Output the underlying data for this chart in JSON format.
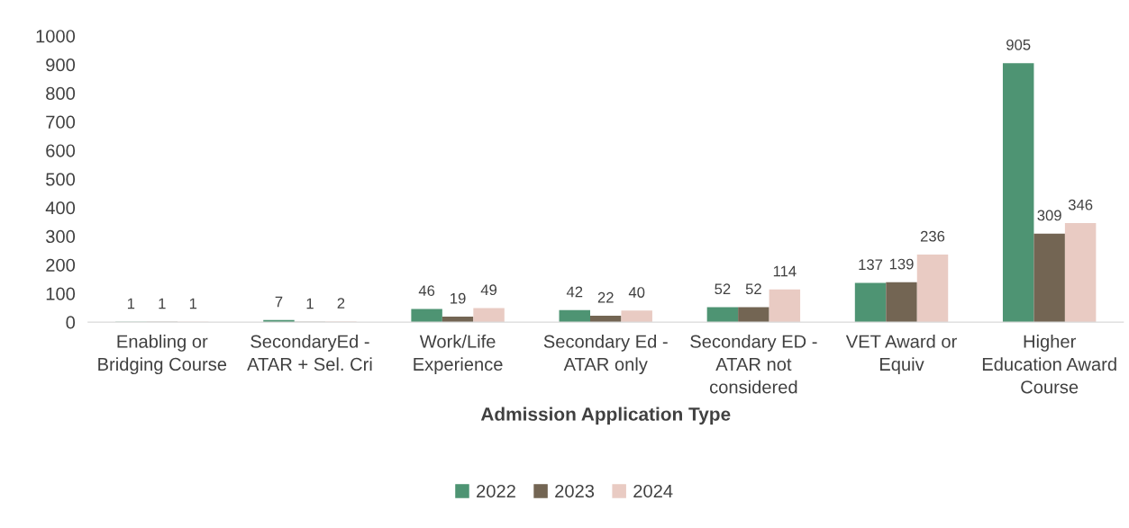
{
  "chart_data": {
    "type": "bar",
    "xlabel": "Admission Application Type",
    "categories": [
      "Enabling or\nBridging Course",
      "SecondaryEd -\nATAR + Sel. Cri",
      "Work/Life\nExperience",
      "Secondary Ed -\nATAR only",
      "Secondary ED -\nATAR not\nconsidered",
      "VET Award or\nEquiv",
      "Higher\nEducation Award\nCourse"
    ],
    "series": [
      {
        "name": "2022",
        "color": "#4e9473",
        "values": [
          1,
          7,
          46,
          42,
          52,
          137,
          905
        ]
      },
      {
        "name": "2023",
        "color": "#736553",
        "values": [
          1,
          1,
          19,
          22,
          52,
          139,
          309
        ]
      },
      {
        "name": "2024",
        "color": "#e9cbc3",
        "values": [
          1,
          2,
          49,
          40,
          114,
          236,
          346
        ]
      }
    ],
    "ylim": [
      0,
      1000
    ],
    "yticks": [
      0,
      100,
      200,
      300,
      400,
      500,
      600,
      700,
      800,
      900,
      1000
    ],
    "grid": false,
    "legend": "bottom",
    "data_labels": true
  }
}
